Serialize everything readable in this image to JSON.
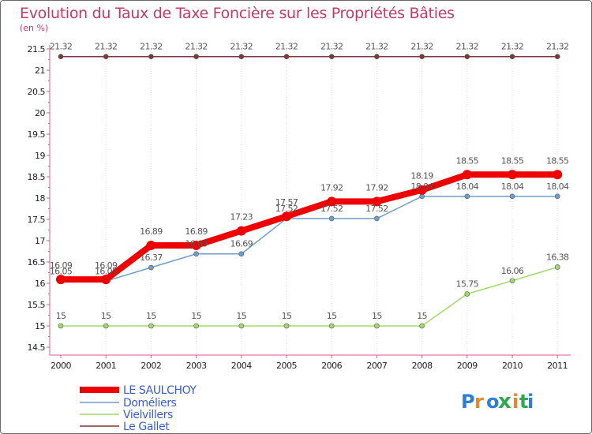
{
  "chart_data": {
    "type": "line",
    "title": "Evolution du Taux de Taxe Foncière sur les Propriétés Bâties",
    "ylabel": "(en %)",
    "xlabel": "",
    "ylim": [
      14.5,
      21.5
    ],
    "yticks": [
      "14.5",
      "15",
      "15.5",
      "16",
      "16.5",
      "17",
      "17.5",
      "18",
      "18.5",
      "19",
      "19.5",
      "20",
      "20.5",
      "21",
      "21.5"
    ],
    "categories": [
      "2000",
      "2001",
      "2002",
      "2003",
      "2004",
      "2005",
      "2006",
      "2007",
      "2008",
      "2009",
      "2010",
      "2011"
    ],
    "series": [
      {
        "name": "Le Gallet",
        "color": "#7a3a3a",
        "values": [
          21.32,
          21.32,
          21.32,
          21.32,
          21.32,
          21.32,
          21.32,
          21.32,
          21.32,
          21.32,
          21.32,
          21.32
        ],
        "labels": [
          "21.32",
          "21.32",
          "21.32",
          "21.32",
          "21.32",
          "21.32",
          "21.32",
          "21.32",
          "21.32",
          "21.32",
          "21.32",
          "21.32"
        ]
      },
      {
        "name": "Vielvillers",
        "color": "#a3d96b",
        "values": [
          15,
          15,
          15,
          15,
          15,
          15,
          15,
          15,
          15,
          15.75,
          16.06,
          16.38
        ],
        "labels": [
          "15",
          "15",
          "15",
          "15",
          "15",
          "15",
          "15",
          "15",
          "15",
          "15.75",
          "16.06",
          "16.38"
        ]
      },
      {
        "name": "Doméliers",
        "color": "#6d9fcb",
        "values": [
          16.05,
          16.05,
          16.37,
          16.69,
          16.69,
          17.52,
          17.52,
          17.52,
          18.04,
          18.04,
          18.04,
          18.04
        ],
        "labels": [
          "16.05",
          "16.05",
          "16.37",
          "16.69",
          "16.69",
          "17.52",
          "17.52",
          "17.52",
          "18.04",
          "18.04",
          "18.04",
          "18.04"
        ]
      },
      {
        "name": "LE SAULCHOY",
        "color": "#ee0000",
        "values": [
          16.09,
          16.09,
          16.89,
          16.89,
          17.23,
          17.57,
          17.92,
          17.92,
          18.19,
          18.55,
          18.55,
          18.55
        ],
        "labels": [
          "16.09",
          "16.09",
          "16.89",
          "16.89",
          "17.23",
          "17.57",
          "17.92",
          "17.92",
          "18.19",
          "18.55",
          "18.55",
          "18.55"
        ]
      }
    ],
    "legend": [
      "LE SAULCHOY",
      "Doméliers",
      "Vielvillers",
      "Le Gallet"
    ],
    "legend_position": "bottom-left",
    "brand": "Proxiti"
  }
}
